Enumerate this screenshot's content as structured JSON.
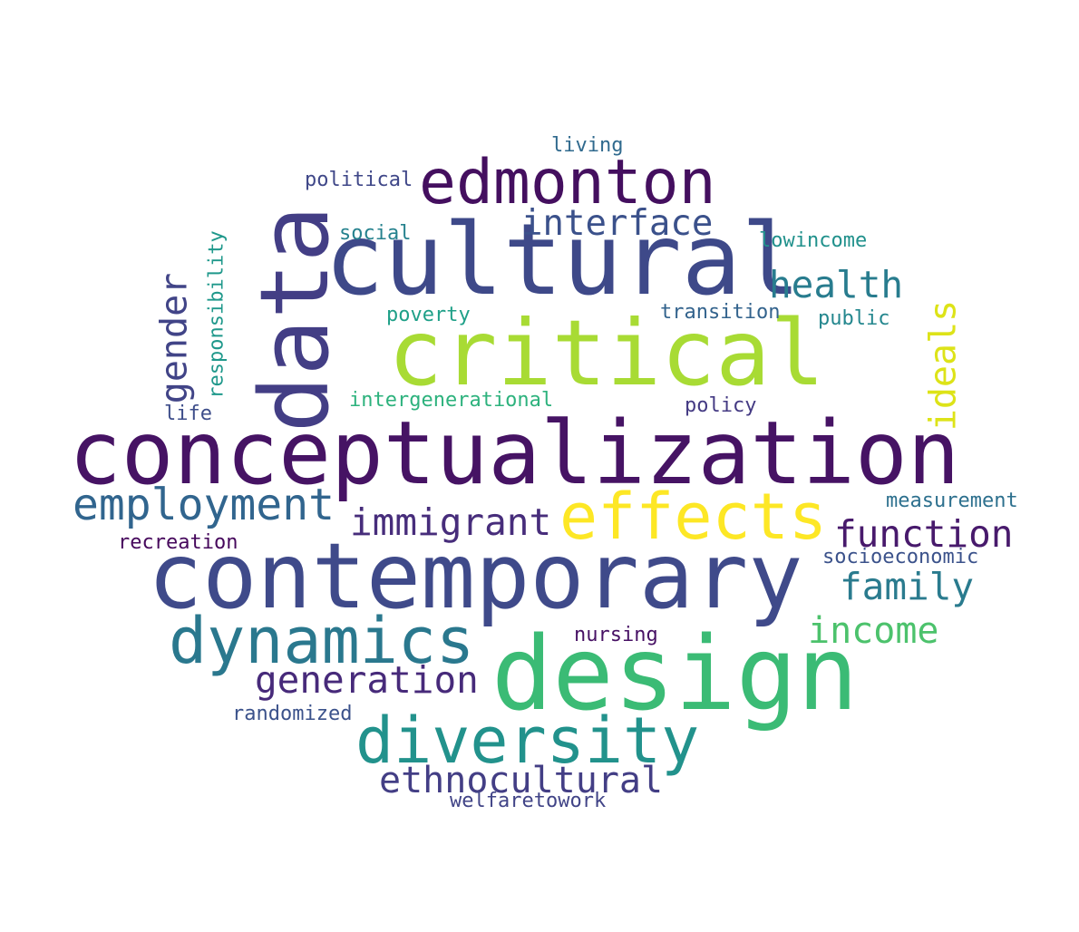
{
  "words": {
    "conceptualization": {
      "text": "conceptualization",
      "color": "#461364"
    },
    "contemporary": {
      "text": "contemporary",
      "color": "#3f4a8a"
    },
    "cultural": {
      "text": "cultural",
      "color": "#3e4989"
    },
    "critical": {
      "text": "critical",
      "color": "#a8db34"
    },
    "design": {
      "text": "design",
      "color": "#3bbb75"
    },
    "data": {
      "text": "data",
      "color": "#433e85"
    },
    "effects": {
      "text": "effects",
      "color": "#fde725"
    },
    "dynamics": {
      "text": "dynamics",
      "color": "#2a788e"
    },
    "diversity": {
      "text": "diversity",
      "color": "#22928c"
    },
    "edmonton": {
      "text": "edmonton",
      "color": "#440f5f"
    },
    "employment": {
      "text": "employment",
      "color": "#31658e"
    },
    "immigrant": {
      "text": "immigrant",
      "color": "#472d7b"
    },
    "function": {
      "text": "function",
      "color": "#481a6c"
    },
    "health": {
      "text": "health",
      "color": "#287c8e"
    },
    "interface": {
      "text": "interface",
      "color": "#3b518b"
    },
    "family": {
      "text": "family",
      "color": "#2a7b8e"
    },
    "income": {
      "text": "income",
      "color": "#4cc26c"
    },
    "generation": {
      "text": "generation",
      "color": "#472a7a"
    },
    "ethnocultural": {
      "text": "ethnocultural",
      "color": "#433e85"
    },
    "gender": {
      "text": "gender",
      "color": "#414487"
    },
    "ideals": {
      "text": "ideals",
      "color": "#dde318"
    },
    "responsibility": {
      "text": "responsibility",
      "color": "#1f988b"
    },
    "living": {
      "text": "living",
      "color": "#306a8e"
    },
    "political": {
      "text": "political",
      "color": "#3f4788"
    },
    "social": {
      "text": "social",
      "color": "#26828e"
    },
    "lowincome": {
      "text": "lowincome",
      "color": "#21918c"
    },
    "poverty": {
      "text": "poverty",
      "color": "#1fa088"
    },
    "transition": {
      "text": "transition",
      "color": "#33638d"
    },
    "public": {
      "text": "public",
      "color": "#24878e"
    },
    "intergenerational": {
      "text": "intergenerational",
      "color": "#2db27d"
    },
    "policy": {
      "text": "policy",
      "color": "#443a83"
    },
    "life": {
      "text": "life",
      "color": "#3d4d8a"
    },
    "measurement": {
      "text": "measurement",
      "color": "#2d708e"
    },
    "recreation": {
      "text": "recreation",
      "color": "#46085c"
    },
    "socioeconomic": {
      "text": "socioeconomic",
      "color": "#3b528b"
    },
    "nursing": {
      "text": "nursing",
      "color": "#471164"
    },
    "randomized": {
      "text": "randomized",
      "color": "#3b528b"
    },
    "welfaretowork": {
      "text": "welfaretowork",
      "color": "#414487"
    }
  }
}
